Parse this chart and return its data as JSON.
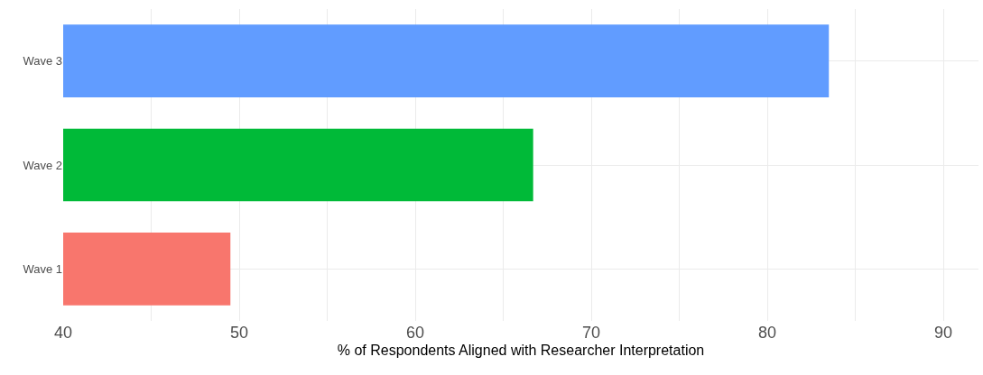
{
  "chart_data": {
    "type": "bar",
    "orientation": "horizontal",
    "xlabel": "% of Respondents Aligned with Researcher Interpretation",
    "categories": [
      "Wave 3",
      "Wave 2",
      "Wave 1"
    ],
    "values": [
      83.5,
      66.7,
      49.5
    ],
    "colors": [
      "#619cff",
      "#00ba38",
      "#f8766d"
    ],
    "xlim": [
      40,
      92
    ],
    "xticks": [
      40,
      {
        "value": 45,
        "label": null
      },
      50,
      {
        "value": 55,
        "label": null
      },
      60,
      {
        "value": 65,
        "label": null
      },
      70,
      {
        "value": 75,
        "label": null
      },
      80,
      {
        "value": 85,
        "label": null
      },
      90
    ],
    "grid": true
  }
}
